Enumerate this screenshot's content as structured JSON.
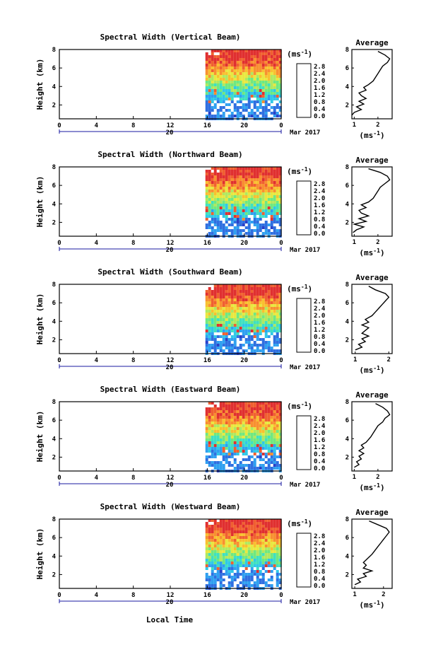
{
  "xlabel": "Local Time",
  "day_label": "20",
  "date_suffix": "Mar 2017",
  "colorbar_unit": "(ms",
  "colorbar_unit_exp": "-1",
  "colorbar_ticks": [
    "0.0",
    "0.4",
    "0.8",
    "1.2",
    "1.6",
    "2.0",
    "2.4",
    "2.8"
  ],
  "colorbar_colors": [
    "#1f1f7a",
    "#2840c8",
    "#2f6fe0",
    "#2fa0f0",
    "#30c8e8",
    "#40e0c0",
    "#70e880",
    "#b0e860",
    "#e8e840",
    "#f8c030",
    "#f89030",
    "#f06030",
    "#e03030"
  ],
  "avg_title": "Average",
  "avg_xlabel": "(ms",
  "avg_xlabel_exp": "-1",
  "chart_data": [
    {
      "type": "heatmap",
      "title": "Spectral Width (Vertical Beam)",
      "ylabel": "Height (km)",
      "x_ticks": [
        "0",
        "4",
        "8",
        "12",
        "16",
        "20",
        "0"
      ],
      "y_ticks": [
        "2",
        "4",
        "6",
        "8"
      ],
      "xlim": [
        0,
        24
      ],
      "ylim": [
        0.5,
        8
      ],
      "data_start_hour": 15.8,
      "avg_xticks": [
        "1",
        "2"
      ],
      "avg_xlim": [
        0.9,
        2.6
      ],
      "avg_profile": [
        [
          0.9,
          0.9
        ],
        [
          1.0,
          1.2
        ],
        [
          1.3,
          1.5
        ],
        [
          1.1,
          1.8
        ],
        [
          1.4,
          2.1
        ],
        [
          1.2,
          2.4
        ],
        [
          1.5,
          2.7
        ],
        [
          1.3,
          3.0
        ],
        [
          1.2,
          3.3
        ],
        [
          1.5,
          3.6
        ],
        [
          1.4,
          3.9
        ],
        [
          1.6,
          4.2
        ],
        [
          1.8,
          4.6
        ],
        [
          1.9,
          5.0
        ],
        [
          2.0,
          5.4
        ],
        [
          2.1,
          5.8
        ],
        [
          2.2,
          6.2
        ],
        [
          2.4,
          6.6
        ],
        [
          2.5,
          7.0
        ],
        [
          2.3,
          7.4
        ],
        [
          2.0,
          7.8
        ]
      ]
    },
    {
      "type": "heatmap",
      "title": "Spectral Width (Northward Beam)",
      "ylabel": "Height (km)",
      "x_ticks": [
        "0",
        "4",
        "8",
        "12",
        "16",
        "20",
        "0"
      ],
      "y_ticks": [
        "2",
        "4",
        "6",
        "8"
      ],
      "xlim": [
        0,
        24
      ],
      "ylim": [
        0.5,
        8
      ],
      "data_start_hour": 15.8,
      "avg_xticks": [
        "1",
        "2"
      ],
      "avg_xlim": [
        0.9,
        2.6
      ],
      "avg_profile": [
        [
          0.95,
          0.9
        ],
        [
          1.1,
          1.2
        ],
        [
          1.4,
          1.5
        ],
        [
          1.0,
          1.8
        ],
        [
          1.5,
          2.1
        ],
        [
          1.2,
          2.4
        ],
        [
          1.6,
          2.7
        ],
        [
          1.3,
          3.0
        ],
        [
          1.2,
          3.3
        ],
        [
          1.5,
          3.6
        ],
        [
          1.3,
          3.9
        ],
        [
          1.6,
          4.2
        ],
        [
          1.8,
          4.6
        ],
        [
          1.9,
          5.0
        ],
        [
          2.0,
          5.4
        ],
        [
          2.1,
          5.8
        ],
        [
          2.3,
          6.2
        ],
        [
          2.5,
          6.6
        ],
        [
          2.4,
          7.0
        ],
        [
          2.1,
          7.4
        ],
        [
          1.6,
          7.8
        ]
      ]
    },
    {
      "type": "heatmap",
      "title": "Spectral Width (Southward Beam)",
      "ylabel": "Height (km)",
      "x_ticks": [
        "0",
        "4",
        "8",
        "12",
        "16",
        "20",
        "0"
      ],
      "y_ticks": [
        "2",
        "4",
        "6",
        "8"
      ],
      "xlim": [
        0,
        24
      ],
      "ylim": [
        0.5,
        8
      ],
      "data_start_hour": 15.8,
      "avg_xticks": [
        "1",
        "2"
      ],
      "avg_xlim": [
        0.9,
        2.1
      ],
      "avg_profile": [
        [
          1.0,
          0.9
        ],
        [
          1.2,
          1.2
        ],
        [
          1.1,
          1.5
        ],
        [
          1.3,
          1.8
        ],
        [
          1.2,
          2.1
        ],
        [
          1.4,
          2.4
        ],
        [
          1.2,
          2.7
        ],
        [
          1.3,
          3.0
        ],
        [
          1.4,
          3.3
        ],
        [
          1.2,
          3.6
        ],
        [
          1.4,
          3.9
        ],
        [
          1.3,
          4.2
        ],
        [
          1.5,
          4.6
        ],
        [
          1.6,
          5.0
        ],
        [
          1.7,
          5.4
        ],
        [
          1.8,
          5.8
        ],
        [
          1.9,
          6.2
        ],
        [
          2.0,
          6.6
        ],
        [
          1.9,
          7.0
        ],
        [
          1.6,
          7.4
        ],
        [
          1.4,
          7.8
        ]
      ]
    },
    {
      "type": "heatmap",
      "title": "Spectral Width (Eastward Beam)",
      "ylabel": "Height (km)",
      "x_ticks": [
        "0",
        "4",
        "8",
        "12",
        "16",
        "20",
        "0"
      ],
      "y_ticks": [
        "2",
        "4",
        "6",
        "8"
      ],
      "xlim": [
        0,
        24
      ],
      "ylim": [
        0.5,
        8
      ],
      "data_start_hour": 15.8,
      "avg_xticks": [
        "1",
        "2"
      ],
      "avg_xlim": [
        0.9,
        2.6
      ],
      "avg_profile": [
        [
          1.0,
          0.9
        ],
        [
          1.2,
          1.2
        ],
        [
          1.1,
          1.5
        ],
        [
          1.3,
          1.8
        ],
        [
          1.2,
          2.1
        ],
        [
          1.4,
          2.4
        ],
        [
          1.2,
          2.7
        ],
        [
          1.4,
          3.0
        ],
        [
          1.3,
          3.3
        ],
        [
          1.5,
          3.6
        ],
        [
          1.6,
          3.9
        ],
        [
          1.7,
          4.2
        ],
        [
          1.8,
          4.6
        ],
        [
          1.9,
          5.0
        ],
        [
          2.0,
          5.4
        ],
        [
          2.2,
          5.8
        ],
        [
          2.3,
          6.2
        ],
        [
          2.5,
          6.6
        ],
        [
          2.4,
          7.0
        ],
        [
          2.2,
          7.4
        ],
        [
          1.9,
          7.8
        ]
      ]
    },
    {
      "type": "heatmap",
      "title": "Spectral Width (Westward Beam)",
      "ylabel": "Height (km)",
      "x_ticks": [
        "0",
        "4",
        "8",
        "12",
        "16",
        "20",
        "0"
      ],
      "y_ticks": [
        "2",
        "4",
        "6",
        "8"
      ],
      "xlim": [
        0,
        24
      ],
      "ylim": [
        0.5,
        8
      ],
      "data_start_hour": 15.8,
      "avg_xticks": [
        "1",
        "2"
      ],
      "avg_xlim": [
        0.9,
        2.3
      ],
      "avg_profile": [
        [
          1.0,
          0.9
        ],
        [
          1.2,
          1.2
        ],
        [
          1.1,
          1.5
        ],
        [
          1.4,
          1.8
        ],
        [
          1.3,
          2.1
        ],
        [
          1.6,
          2.4
        ],
        [
          1.3,
          2.7
        ],
        [
          1.4,
          3.0
        ],
        [
          1.3,
          3.3
        ],
        [
          1.4,
          3.6
        ],
        [
          1.5,
          3.9
        ],
        [
          1.6,
          4.2
        ],
        [
          1.7,
          4.6
        ],
        [
          1.8,
          5.0
        ],
        [
          1.9,
          5.4
        ],
        [
          2.0,
          5.8
        ],
        [
          2.1,
          6.2
        ],
        [
          2.2,
          6.6
        ],
        [
          2.1,
          7.0
        ],
        [
          1.8,
          7.4
        ],
        [
          1.5,
          7.8
        ]
      ]
    }
  ]
}
